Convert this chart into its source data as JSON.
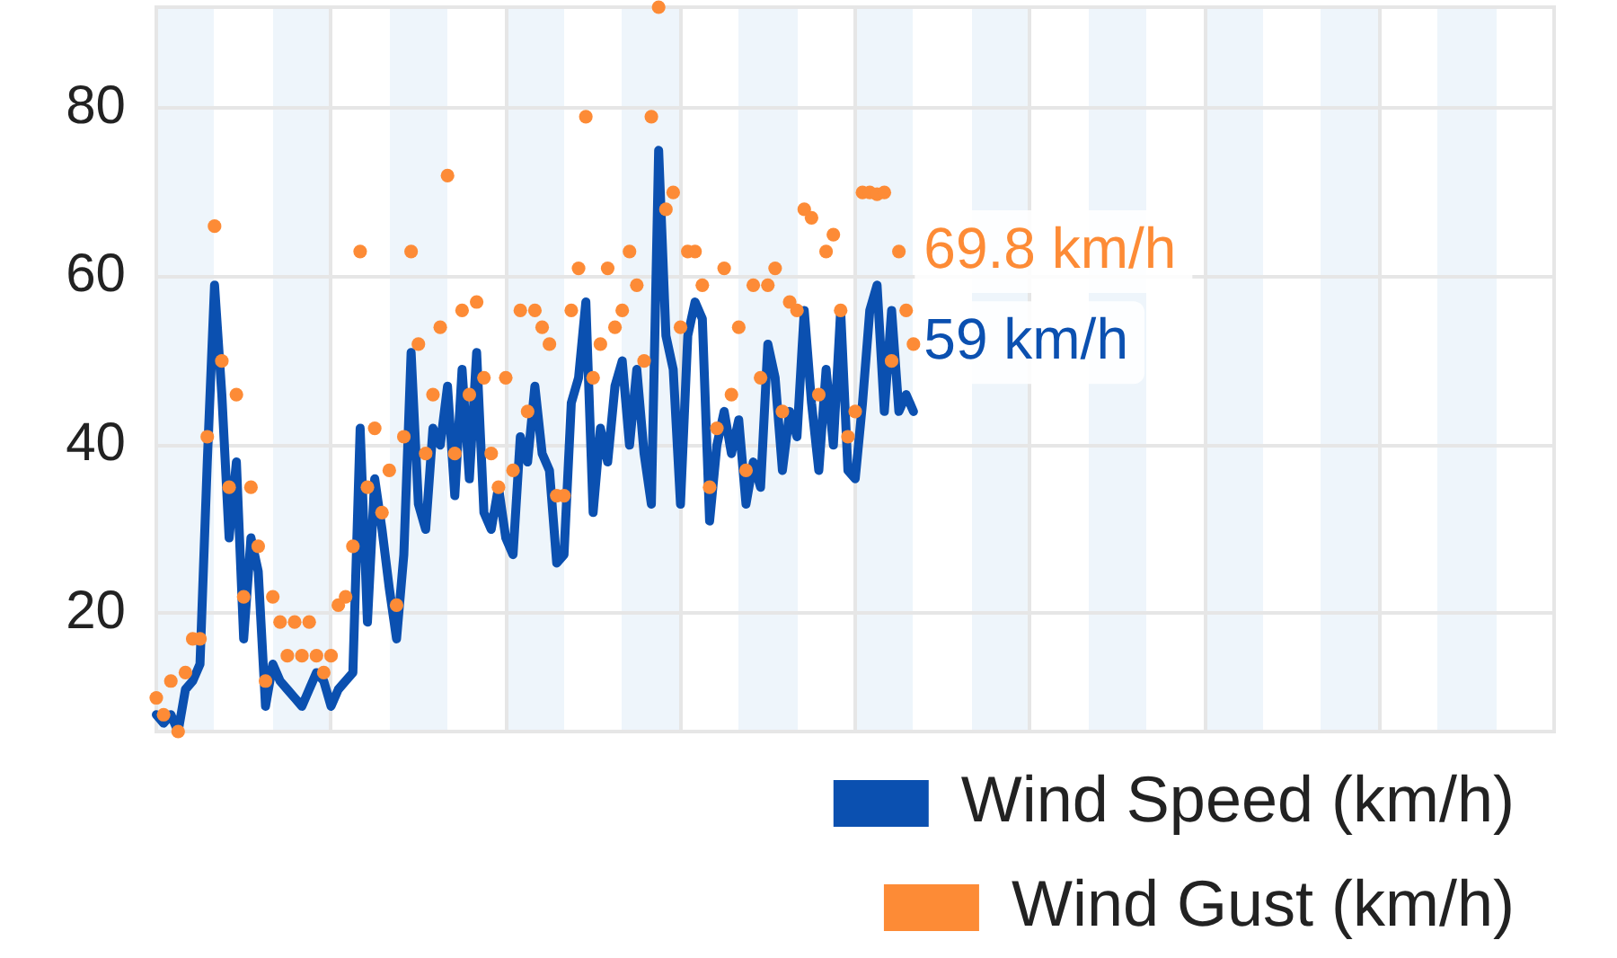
{
  "chart_data": {
    "type": "line",
    "categories": [
      null,
      null,
      null,
      null,
      null,
      null,
      null,
      null,
      null,
      null,
      null,
      null,
      null,
      null,
      null,
      null,
      null,
      null,
      null,
      null,
      null,
      null,
      null,
      null,
      null,
      null,
      null,
      null,
      null,
      null,
      null,
      null,
      null,
      null,
      null,
      null,
      null,
      null,
      null,
      null,
      null,
      null,
      null,
      null,
      null,
      null,
      null,
      null,
      null,
      null,
      null,
      null,
      null,
      null,
      null,
      null,
      null,
      null,
      null,
      null,
      null,
      null,
      null,
      null,
      null,
      null,
      null,
      null,
      null,
      null,
      null,
      null,
      null,
      null,
      null,
      null,
      null,
      null,
      null,
      null,
      null,
      null,
      null,
      null,
      null,
      null,
      null,
      null,
      null,
      null,
      null,
      null,
      null,
      null,
      null,
      null,
      null,
      null,
      null,
      null,
      null,
      null,
      null,
      null,
      null,
      null,
      null,
      null,
      null,
      null,
      null,
      null,
      null,
      null,
      null,
      null,
      null,
      null,
      null,
      null,
      null,
      null,
      null,
      null,
      null,
      null,
      null,
      null,
      null,
      null,
      null,
      null,
      null,
      null,
      null,
      null,
      null,
      null,
      null,
      null,
      null,
      null,
      null,
      null,
      null,
      null,
      null,
      null,
      null,
      null,
      null,
      null,
      null,
      null,
      null,
      null,
      null,
      null,
      null,
      null,
      null,
      null,
      null,
      null,
      null,
      null,
      null,
      null,
      null,
      null,
      null,
      null,
      null,
      null,
      null,
      null,
      null,
      null,
      null,
      null,
      null,
      null,
      null,
      null,
      null,
      null,
      null,
      null,
      null,
      null,
      null,
      null,
      null
    ],
    "series": [
      {
        "name": "Wind Speed (km/h)",
        "color": "#0b50b0",
        "values": [
          8,
          7,
          8,
          6,
          11,
          12,
          14,
          38,
          59,
          46,
          29,
          38,
          17,
          29,
          25,
          9,
          14,
          12,
          11,
          10,
          9,
          11,
          13,
          12,
          9,
          11,
          12,
          13,
          42,
          19,
          36,
          30,
          23,
          17,
          27,
          51,
          33,
          30,
          42,
          40,
          47,
          34,
          49,
          36,
          51,
          32,
          30,
          35,
          29,
          27,
          41,
          38,
          47,
          39,
          37,
          26,
          27,
          45,
          48,
          57,
          32,
          42,
          38,
          47,
          50,
          40,
          49,
          39,
          33,
          75,
          53,
          49,
          33,
          53,
          57,
          55,
          31,
          40,
          44,
          39,
          43,
          33,
          38,
          35,
          52,
          48,
          37,
          44,
          41,
          56,
          45,
          37,
          49,
          40,
          56,
          37,
          36,
          45,
          56,
          59,
          44,
          56,
          44,
          46,
          44,
          null,
          null,
          null,
          null,
          null,
          null,
          null,
          null,
          null,
          null,
          null,
          null,
          null,
          null,
          null,
          null,
          null,
          null,
          null,
          null,
          null,
          null,
          null,
          null,
          null,
          null,
          null,
          null,
          null,
          null,
          null,
          null,
          null,
          null,
          null,
          null,
          null,
          null,
          null,
          null,
          null,
          null,
          null,
          null,
          null,
          null,
          null,
          null,
          null,
          null,
          null,
          null,
          null,
          null,
          null,
          null,
          null,
          null,
          null,
          null,
          null,
          null,
          null,
          null,
          null,
          null,
          null,
          null,
          null,
          null,
          null,
          null,
          null,
          null,
          null,
          null,
          null,
          null,
          null,
          null,
          null,
          null,
          null,
          null,
          null,
          null,
          null,
          null
        ],
        "value_labels": [
          null,
          null,
          null,
          null,
          null,
          null,
          null,
          null,
          null,
          null,
          null,
          null,
          null,
          null,
          null,
          null,
          null,
          null,
          null,
          null,
          null,
          null,
          null,
          null,
          null,
          null,
          null,
          null,
          null,
          null,
          null,
          null,
          null,
          null,
          null,
          null,
          null,
          null,
          null,
          null,
          null,
          null,
          null,
          null,
          null,
          null,
          null,
          null,
          null,
          null,
          null,
          null,
          null,
          null,
          null,
          null,
          null,
          null,
          null,
          null,
          null,
          null,
          null,
          null,
          null,
          null,
          null,
          null,
          null,
          null,
          null,
          null,
          null,
          null,
          null,
          null,
          null,
          null,
          null,
          null,
          null,
          null,
          null,
          null,
          null,
          null,
          null,
          null,
          null,
          null,
          null,
          null,
          null,
          null,
          null,
          null,
          null,
          null,
          null,
          "59 km/h",
          null,
          null,
          null,
          null,
          null,
          null,
          null,
          null,
          null,
          null,
          null,
          null,
          null,
          null,
          null,
          null,
          null,
          null,
          null,
          null,
          null,
          null,
          null,
          null,
          null,
          null,
          null,
          null,
          null,
          null,
          null,
          null,
          null,
          null,
          null,
          null,
          null,
          null,
          null,
          null,
          null,
          null,
          null,
          null,
          null,
          null,
          null,
          null,
          null,
          null,
          null,
          null,
          null,
          null,
          null,
          null,
          null,
          null,
          null,
          null,
          null,
          null,
          null,
          null,
          null,
          null,
          null,
          null,
          null,
          null,
          null,
          null,
          null,
          null,
          null,
          null,
          null,
          null,
          null,
          null,
          null,
          null,
          null,
          null,
          null,
          null,
          null,
          null,
          null,
          null,
          null,
          null,
          null
        ]
      },
      {
        "name": "Wind Gust (km/h)",
        "type": "scatter",
        "marker": "circle",
        "color": "#fd8b36",
        "values": [
          10,
          8,
          12,
          6,
          13,
          17,
          17,
          41,
          66,
          50,
          35,
          46,
          22,
          35,
          28,
          12,
          22,
          19,
          15,
          19,
          15,
          19,
          15,
          13,
          15,
          21,
          22,
          28,
          63,
          35,
          42,
          32,
          37,
          21,
          41,
          63,
          52,
          39,
          46,
          54,
          72,
          39,
          56,
          46,
          57,
          48,
          39,
          35,
          48,
          37,
          56,
          44,
          56,
          54,
          52,
          34,
          34,
          56,
          61,
          79,
          48,
          52,
          61,
          54,
          56,
          63,
          59,
          50,
          79,
          92,
          68,
          70,
          54,
          63,
          63,
          59,
          35,
          42,
          61,
          46,
          54,
          37,
          59,
          48,
          59,
          61,
          44,
          57,
          56,
          68,
          67,
          46,
          63,
          65,
          56,
          41,
          44,
          70,
          70,
          69.8,
          70,
          50,
          63,
          56,
          52,
          null,
          null,
          null,
          null,
          null,
          null,
          null,
          null,
          null,
          null,
          null,
          null,
          null,
          null,
          null,
          null,
          null,
          null,
          null,
          null,
          null,
          null,
          null,
          null,
          null,
          null,
          null,
          null,
          null,
          null,
          null,
          null,
          null,
          null,
          null,
          null,
          null,
          null,
          null,
          null,
          null,
          null,
          null,
          null,
          null,
          null,
          null,
          null,
          null,
          null,
          null,
          null,
          null,
          null,
          null,
          null,
          null,
          null,
          null,
          null,
          null,
          null,
          null,
          null,
          null,
          null,
          null,
          null,
          null,
          null,
          null,
          null,
          null,
          null,
          null,
          null,
          null,
          null,
          null,
          null,
          null,
          null,
          null,
          null,
          null,
          null,
          null,
          null
        ],
        "value_labels": [
          null,
          null,
          null,
          null,
          null,
          null,
          null,
          null,
          null,
          null,
          null,
          null,
          null,
          null,
          null,
          null,
          null,
          null,
          null,
          null,
          null,
          null,
          null,
          null,
          null,
          null,
          null,
          null,
          null,
          null,
          null,
          null,
          null,
          null,
          null,
          null,
          null,
          null,
          null,
          null,
          null,
          null,
          null,
          null,
          null,
          null,
          null,
          null,
          null,
          null,
          null,
          null,
          null,
          null,
          null,
          null,
          null,
          null,
          null,
          null,
          null,
          null,
          null,
          null,
          null,
          null,
          null,
          null,
          null,
          null,
          null,
          null,
          null,
          null,
          null,
          null,
          null,
          null,
          null,
          null,
          null,
          null,
          null,
          null,
          null,
          null,
          null,
          null,
          null,
          null,
          null,
          null,
          null,
          null,
          null,
          null,
          null,
          null,
          null,
          "69.8 km/h",
          null,
          null,
          null,
          null,
          null,
          null,
          null,
          null,
          null,
          null,
          null,
          null,
          null,
          null,
          null,
          null,
          null,
          null,
          null,
          null,
          null,
          null,
          null,
          null,
          null,
          null,
          null,
          null,
          null,
          null,
          null,
          null,
          null,
          null,
          null,
          null,
          null,
          null,
          null,
          null,
          null,
          null,
          null,
          null,
          null,
          null,
          null,
          null,
          null,
          null,
          null,
          null,
          null,
          null,
          null,
          null,
          null,
          null,
          null,
          null,
          null,
          null,
          null,
          null,
          null,
          null,
          null,
          null,
          null,
          null,
          null,
          null,
          null,
          null,
          null,
          null,
          null,
          null,
          null,
          null,
          null,
          null,
          null,
          null,
          null,
          null,
          null,
          null,
          null,
          null,
          null,
          null,
          null
        ]
      }
    ],
    "ylim": [
      6,
      92
    ],
    "yticks": [
      20,
      40,
      60,
      80
    ],
    "grid": true,
    "legend": "bottom right"
  }
}
